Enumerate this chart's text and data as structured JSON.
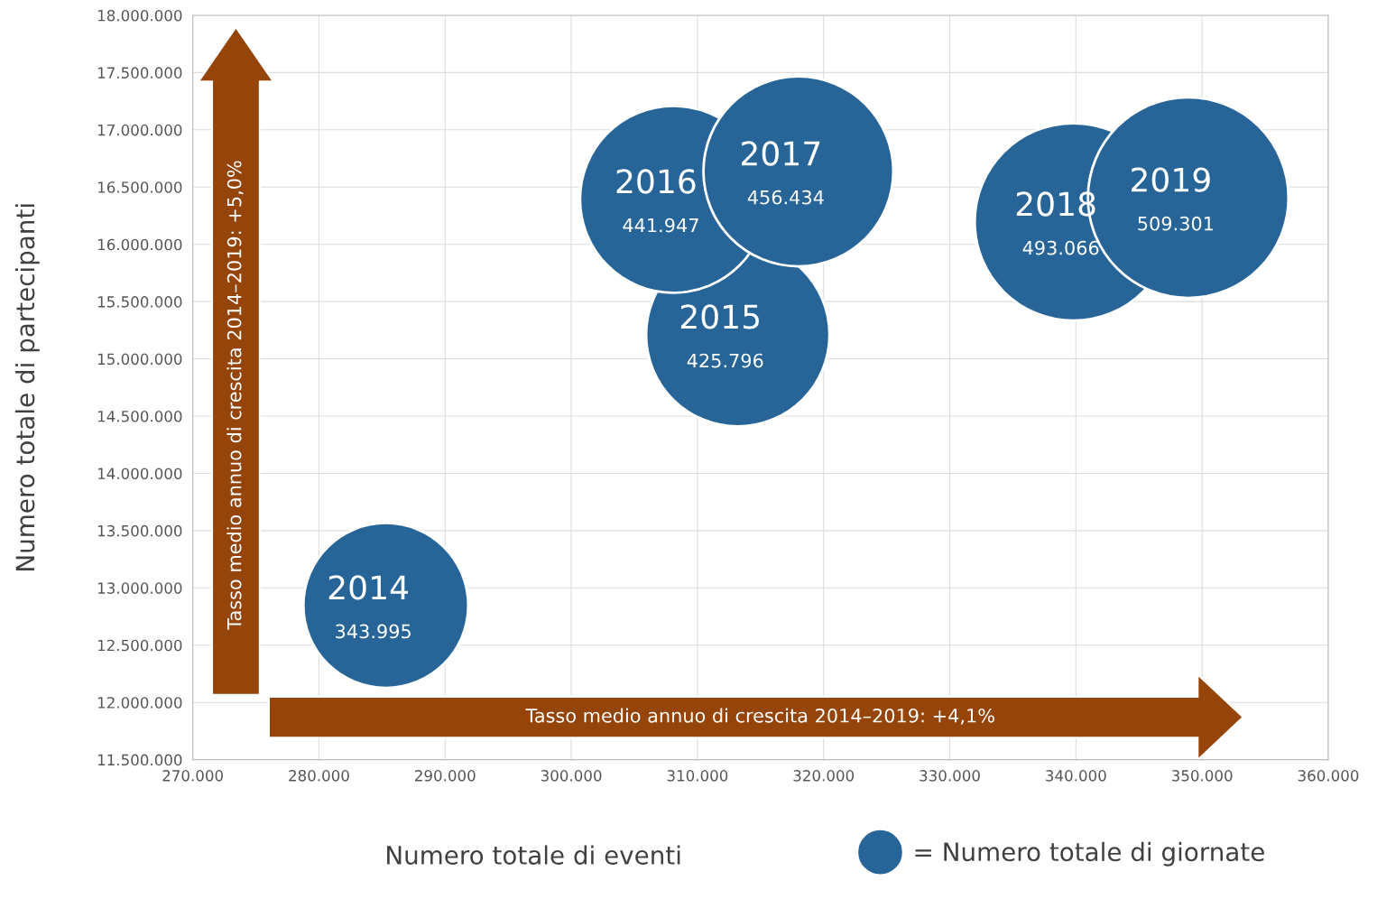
{
  "chart_data": {
    "type": "bubble",
    "xlabel": "Numero totale di eventi",
    "ylabel": "Numero totale di partecipanti",
    "x": [
      285300,
      313200,
      308100,
      318000,
      339800,
      348900
    ],
    "series": [
      {
        "name": "= Numero totale di giornate",
        "color": "#276599",
        "values": [
          12847000,
          15211000,
          16393000,
          16637000,
          16196000,
          16408000
        ],
        "sizes": [
          343995,
          425796,
          441947,
          456434,
          493066,
          509301
        ],
        "value_labels": [
          "343.995",
          "425.796",
          "441.947",
          "456.434",
          "493.066",
          "509.301"
        ]
      }
    ],
    "annotations": [
      "Tasso medio annuo di crescita 2014–2019: +5,0%",
      "Tasso medio annuo di crescita 2014–2019: +4,1%",
      {
        "text": "2014",
        "x": 285300,
        "y": 12847000
      },
      {
        "text": "2015",
        "x": 313200,
        "y": 15211000
      },
      {
        "text": "2016",
        "x": 308100,
        "y": 16393000
      },
      {
        "text": "2017",
        "x": 318000,
        "y": 16637000
      },
      {
        "text": "2018",
        "x": 339800,
        "y": 16196000
      },
      {
        "text": "2019",
        "x": 348900,
        "y": 16408000
      }
    ],
    "xlim": [
      270000,
      360000
    ],
    "xticks": [
      {
        "value": 270000,
        "label": "270.000"
      },
      {
        "value": 280000,
        "label": "280.000"
      },
      {
        "value": 290000,
        "label": "290.000"
      },
      {
        "value": 300000,
        "label": "300.000"
      },
      {
        "value": 310000,
        "label": "310.000"
      },
      {
        "value": 320000,
        "label": "320.000"
      },
      {
        "value": 330000,
        "label": "330.000"
      },
      {
        "value": 340000,
        "label": "340.000"
      },
      {
        "value": 350000,
        "label": "350.000"
      },
      {
        "value": 360000,
        "label": "360.000"
      }
    ],
    "ylim": [
      11500000,
      18000000
    ],
    "yticks": [
      {
        "value": 11500000,
        "label": "11.500.000"
      },
      {
        "value": 12000000,
        "label": "12.000.000"
      },
      {
        "value": 12500000,
        "label": "12.500.000"
      },
      {
        "value": 13000000,
        "label": "13.000.000"
      },
      {
        "value": 13500000,
        "label": "13.500.000"
      },
      {
        "value": 14000000,
        "label": "14.000.000"
      },
      {
        "value": 14500000,
        "label": "14.500.000"
      },
      {
        "value": 15000000,
        "label": "15.000.000"
      },
      {
        "value": 15500000,
        "label": "15.500.000"
      },
      {
        "value": 16000000,
        "label": "16.000.000"
      },
      {
        "value": 16500000,
        "label": "16.500.000"
      },
      {
        "value": 17000000,
        "label": "17.000.000"
      },
      {
        "value": 17500000,
        "label": "17.500.000"
      },
      {
        "value": 18000000,
        "label": "18.000.000"
      }
    ],
    "grid": true,
    "legend": "bottom right"
  }
}
